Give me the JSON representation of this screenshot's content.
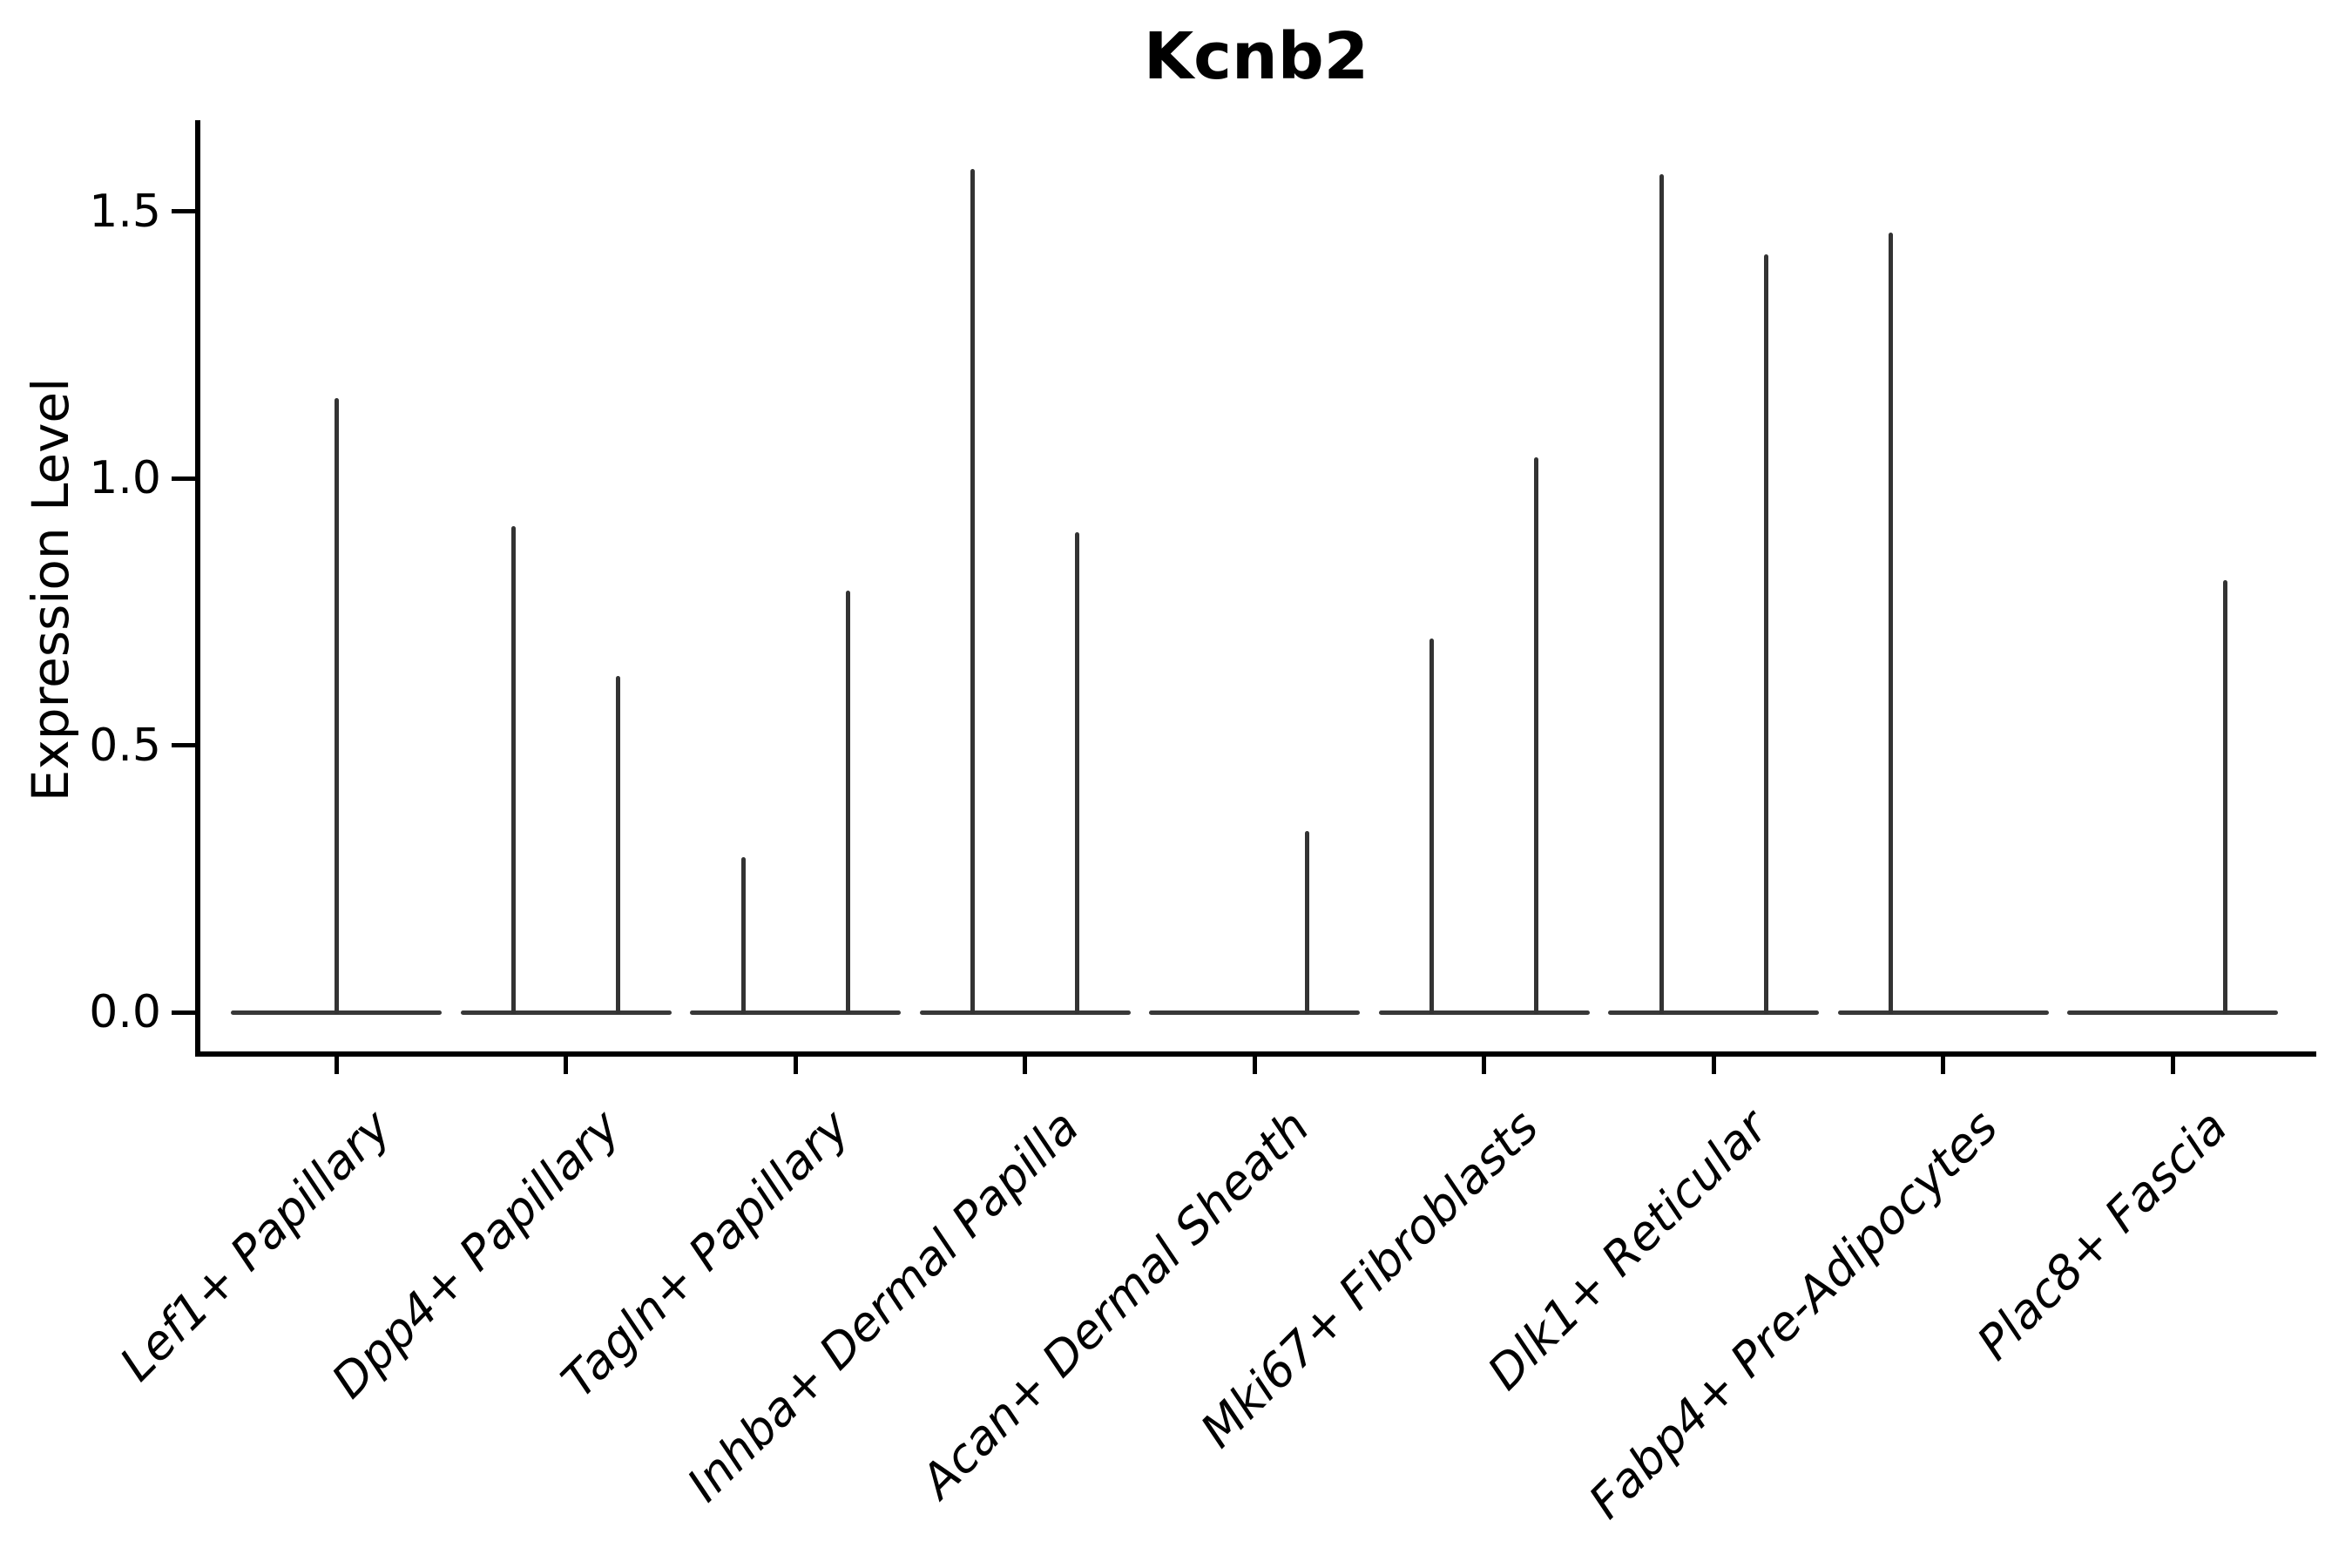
{
  "chart_data": {
    "type": "violin",
    "title": "Kcnb2",
    "ylabel": "Expression Level",
    "xlabel": "",
    "grid": false,
    "legend": false,
    "ylim": [
      -0.08,
      1.67
    ],
    "baseline_value": 0,
    "yticks": [
      {
        "label": "0.0",
        "value": 0.0
      },
      {
        "label": "0.5",
        "value": 0.5
      },
      {
        "label": "1.0",
        "value": 1.0
      },
      {
        "label": "1.5",
        "value": 1.5
      }
    ],
    "categories": [
      "Lef1+ Papillary",
      "Dpp4+ Papillary",
      "Tagln+ Papillary",
      "Inhba+ Dermal Papilla",
      "Acan+ Dermal Sheath",
      "Mki67+ Fibroblasts",
      "Dlk1+ Reticular",
      "Fabp4+ Pre-Adipocytes",
      "Plac8+ Fascia"
    ],
    "groups": [
      {
        "label": "Lef1+ Papillary",
        "spikes": [
          {
            "slot": "center",
            "value": 1.15
          }
        ]
      },
      {
        "label": "Dpp4+ Papillary",
        "spikes": [
          {
            "slot": "left",
            "value": 0.91
          },
          {
            "slot": "right",
            "value": 0.63
          }
        ]
      },
      {
        "label": "Tagln+ Papillary",
        "spikes": [
          {
            "slot": "left",
            "value": 0.29
          },
          {
            "slot": "right",
            "value": 0.79
          }
        ]
      },
      {
        "label": "Inhba+ Dermal Papilla",
        "spikes": [
          {
            "slot": "left",
            "value": 1.58
          },
          {
            "slot": "right",
            "value": 0.9
          }
        ]
      },
      {
        "label": "Acan+ Dermal Sheath",
        "spikes": [
          {
            "slot": "right",
            "value": 0.34
          }
        ]
      },
      {
        "label": "Mki67+ Fibroblasts",
        "spikes": [
          {
            "slot": "left",
            "value": 0.7
          },
          {
            "slot": "right",
            "value": 1.04
          }
        ]
      },
      {
        "label": "Dlk1+ Reticular",
        "spikes": [
          {
            "slot": "left",
            "value": 1.57
          },
          {
            "slot": "right",
            "value": 1.42
          }
        ]
      },
      {
        "label": "Fabp4+ Pre-Adipocytes",
        "spikes": [
          {
            "slot": "left",
            "value": 1.46
          }
        ]
      },
      {
        "label": "Plac8+ Fascia",
        "spikes": [
          {
            "slot": "right",
            "value": 0.81
          }
        ]
      }
    ],
    "colors": {
      "violin_line": "#333333",
      "axis": "#000000",
      "background": "#ffffff"
    }
  }
}
